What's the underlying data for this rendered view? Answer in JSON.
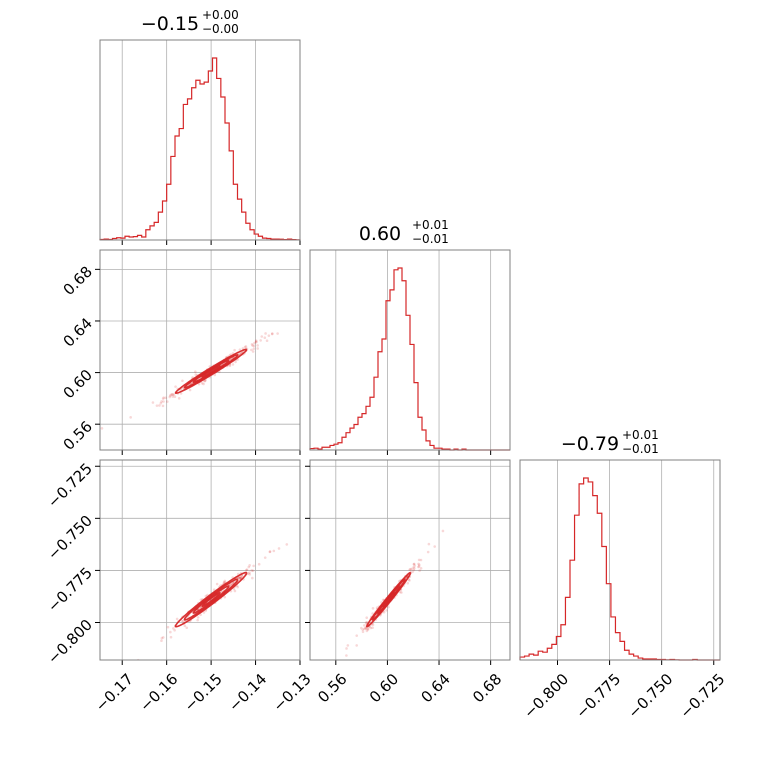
{
  "chart_data": {
    "type": "corner",
    "color": "#d62728",
    "grid": true,
    "parameters": [
      {
        "range": [
          -0.175,
          -0.13
        ],
        "ticks": [
          -0.17,
          -0.16,
          -0.15,
          -0.14,
          -0.13
        ],
        "tick_labels": [
          "−0.17",
          "−0.16",
          "−0.15",
          "−0.14",
          "−0.13"
        ],
        "title": {
          "median": "−0.15",
          "plus": "+0.00",
          "minus": "−0.00"
        },
        "histogram": [
          0.3,
          0.5,
          0.3,
          0.8,
          1.2,
          1.0,
          2.0,
          1.6,
          1.8,
          2.5,
          1.6,
          5.5,
          7.6,
          9.5,
          15.0,
          21.0,
          30.0,
          45.0,
          56.0,
          60.0,
          73.0,
          76.0,
          82.0,
          86.0,
          84.0,
          85.0,
          91.0,
          98.0,
          87.0,
          77.0,
          63.0,
          48.0,
          30.0,
          22.0,
          15.0,
          9.0,
          5.5,
          3.2,
          2.0,
          1.0,
          0.8,
          0.5,
          0.5,
          0.4,
          0.2,
          0.5,
          0.2,
          0.1
        ]
      },
      {
        "range": [
          0.54,
          0.695
        ],
        "ticks": [
          0.56,
          0.6,
          0.64,
          0.68
        ],
        "tick_labels": [
          "0.56",
          "0.60",
          "0.64",
          "0.68"
        ],
        "title": {
          "median": "0.60",
          "plus": "+0.01",
          "minus": "−0.01"
        },
        "histogram": [
          0.8,
          1.0,
          0.5,
          1.5,
          1.5,
          2.5,
          3.2,
          4.0,
          7.0,
          9.5,
          12.0,
          14.0,
          18.0,
          20.0,
          24.0,
          29.0,
          40.0,
          54.0,
          61.0,
          82.0,
          88.0,
          99.0,
          100.0,
          93.0,
          74.0,
          58.0,
          37.0,
          18.0,
          11.0,
          5.0,
          2.5,
          1.0,
          1.0,
          0.5,
          0.5,
          0.0,
          0.5,
          0.0,
          0.5,
          0.0,
          0.0,
          0.0,
          0.0,
          0.0,
          0.0,
          0.0,
          0.0,
          0.0,
          0.0,
          0.0
        ]
      },
      {
        "range": [
          -0.818,
          -0.722
        ],
        "ticks": [
          -0.8,
          -0.775,
          -0.75,
          -0.725
        ],
        "tick_labels": [
          "−0.800",
          "−0.775",
          "−0.750",
          "−0.725"
        ],
        "title": {
          "median": "−0.79",
          "plus": "+0.01",
          "minus": "−0.01"
        },
        "histogram": [
          1.5,
          2.0,
          3.0,
          2.5,
          4.5,
          4.0,
          6.0,
          8.0,
          12.0,
          18.0,
          32.0,
          51.0,
          74.0,
          90.0,
          93.0,
          91.0,
          84.0,
          75.0,
          58.0,
          39.0,
          22.0,
          14.0,
          9.5,
          5.0,
          3.0,
          2.0,
          1.0,
          0.5,
          0.5,
          0.5,
          0.3,
          0.3,
          0.1,
          0.3,
          0.1,
          0.0,
          0.0,
          0.0,
          0.3,
          0.0,
          0.0,
          0.0,
          0.0,
          0.0
        ]
      }
    ],
    "correlations": {
      "1_0": 0.985,
      "2_0": 0.98,
      "2_1": 0.99
    },
    "centers": [
      -0.15,
      0.601,
      -0.789
    ],
    "spreads": [
      0.004,
      0.0085,
      0.0065
    ]
  }
}
